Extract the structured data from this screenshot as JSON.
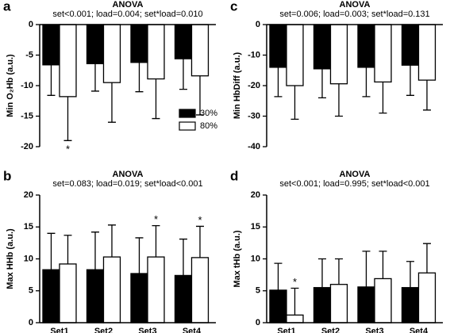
{
  "chart_data": [
    {
      "type": "bar",
      "panel": "a",
      "title": "ANOVA",
      "subtitle": "set<0.001; load=0.004; set*load=0.010",
      "ylabel": "Min O₂Hb (a.u.)",
      "ylim": [
        -20,
        0
      ],
      "yticks": [
        0,
        -5,
        -10,
        -15,
        -20
      ],
      "legend": "lower right",
      "series": [
        {
          "name": "30%",
          "color": "#000000",
          "values": [
            -6.6,
            -6.4,
            -6.2,
            -5.6
          ],
          "errors": [
            5.0,
            4.5,
            4.8,
            5.0
          ]
        },
        {
          "name": "80%",
          "color": "#ffffff",
          "values": [
            -11.8,
            -9.5,
            -8.9,
            -8.4
          ],
          "errors": [
            7.2,
            6.5,
            6.5,
            6.4
          ],
          "markers": [
            "*",
            null,
            null,
            null
          ]
        }
      ]
    },
    {
      "type": "bar",
      "panel": "b",
      "title": "ANOVA",
      "subtitle": "set=0.083; load=0.019; set*load<0.001",
      "ylabel": "Max HHb (a.u.)",
      "ylim": [
        0,
        20
      ],
      "yticks": [
        0,
        5,
        10,
        15,
        20
      ],
      "categories": [
        "Set1",
        "Set2",
        "Set3",
        "Set4"
      ],
      "series": [
        {
          "color": "#000000",
          "values": [
            8.3,
            8.3,
            7.7,
            7.4
          ],
          "errors": [
            5.7,
            5.9,
            5.6,
            5.7
          ]
        },
        {
          "color": "#ffffff",
          "values": [
            9.2,
            10.3,
            10.3,
            10.2
          ],
          "errors": [
            4.5,
            5.0,
            4.9,
            4.9
          ],
          "markers": [
            null,
            null,
            "*",
            "*"
          ]
        }
      ]
    },
    {
      "type": "bar",
      "panel": "c",
      "title": "ANOVA",
      "subtitle": "set=0.006; load=0.003; set*load=0.131",
      "ylabel": "Min HbDiff (a.u.)",
      "ylim": [
        -40,
        0
      ],
      "yticks": [
        0,
        -10,
        -20,
        -30,
        -40
      ],
      "series": [
        {
          "color": "#000000",
          "values": [
            -14,
            -14.5,
            -14,
            -13.3
          ],
          "errors": [
            9.6,
            9.5,
            9.6,
            9.9
          ]
        },
        {
          "color": "#ffffff",
          "values": [
            -20,
            -19.4,
            -18.8,
            -18.2
          ],
          "errors": [
            11,
            10.6,
            10.2,
            9.8
          ]
        }
      ]
    },
    {
      "type": "bar",
      "panel": "d",
      "title": "ANOVA",
      "subtitle": "set<0.001; load=0.995; set*load<0.001",
      "ylabel": "Max tHb (a.u.)",
      "ylim": [
        0,
        20
      ],
      "yticks": [
        0,
        5,
        10,
        15,
        20
      ],
      "categories": [
        "Set1",
        "Set2",
        "Set3",
        "Set4"
      ],
      "series": [
        {
          "color": "#000000",
          "values": [
            5.1,
            5.5,
            5.6,
            5.5
          ],
          "errors": [
            4.2,
            4.5,
            5.6,
            4.1
          ]
        },
        {
          "color": "#ffffff",
          "values": [
            1.2,
            6.0,
            6.9,
            7.8
          ],
          "errors": [
            4.2,
            4.0,
            4.3,
            4.6
          ],
          "markers": [
            "*",
            null,
            null,
            null
          ]
        }
      ]
    }
  ]
}
